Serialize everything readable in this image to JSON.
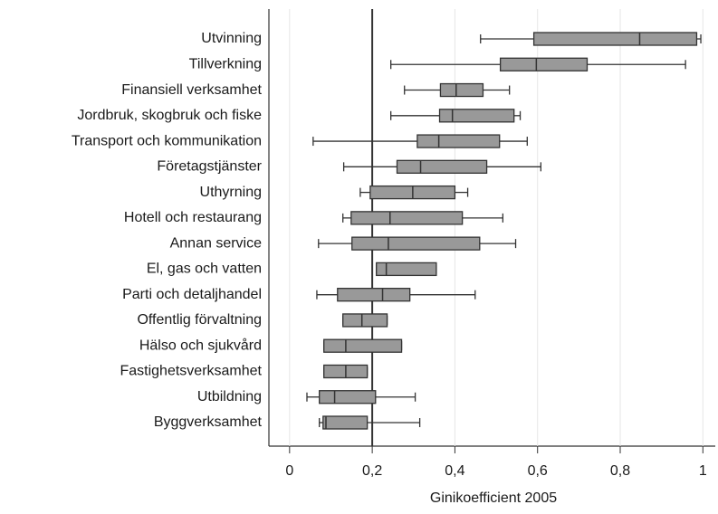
{
  "chart_data": {
    "type": "boxplot",
    "xlabel": "Ginikoefficient 2005",
    "categories": [
      "Utvinning",
      "Tillverkning",
      "Finansiell verksamhet",
      "Jordbruk, skogbruk och fiske",
      "Transport och kommunikation",
      "Företagstjänster",
      "Uthyrning",
      "Hotell och restaurang",
      "Annan service",
      "El, gas och vatten",
      "Parti och detaljhandel",
      "Offentlig förvaltning",
      "Hälso och sjukvård",
      "Fastighetsverksamhet",
      "Utbildning",
      "Byggverksamhet"
    ],
    "whislo": [
      0.462,
      0.245,
      0.278,
      0.245,
      0.057,
      0.131,
      0.171,
      0.129,
      0.07,
      0.21,
      0.066,
      0.129,
      0.083,
      0.083,
      0.042,
      0.072
    ],
    "q1": [
      0.591,
      0.51,
      0.365,
      0.363,
      0.309,
      0.26,
      0.195,
      0.149,
      0.151,
      0.21,
      0.116,
      0.129,
      0.083,
      0.083,
      0.072,
      0.081
    ],
    "med": [
      0.847,
      0.597,
      0.403,
      0.394,
      0.361,
      0.317,
      0.298,
      0.243,
      0.239,
      0.234,
      0.225,
      0.175,
      0.136,
      0.136,
      0.109,
      0.088
    ],
    "q3": [
      0.985,
      0.72,
      0.468,
      0.543,
      0.508,
      0.477,
      0.4,
      0.418,
      0.46,
      0.355,
      0.291,
      0.236,
      0.271,
      0.188,
      0.208,
      0.188
    ],
    "whishi": [
      0.995,
      0.958,
      0.532,
      0.558,
      0.575,
      0.608,
      0.431,
      0.516,
      0.547,
      0.355,
      0.449,
      0.236,
      0.271,
      0.188,
      0.304,
      0.315
    ],
    "color": "#999999",
    "reference_line": 0.2,
    "xlim": [
      -0.05,
      1.03
    ],
    "xticks": [
      0,
      {
        "value": 0.2,
        "label": "0,2"
      },
      {
        "value": 0.4,
        "label": "0,4"
      },
      {
        "value": 0.6,
        "label": "0,6"
      },
      {
        "value": 0.8,
        "label": "0,8"
      },
      1
    ],
    "grid": true
  }
}
